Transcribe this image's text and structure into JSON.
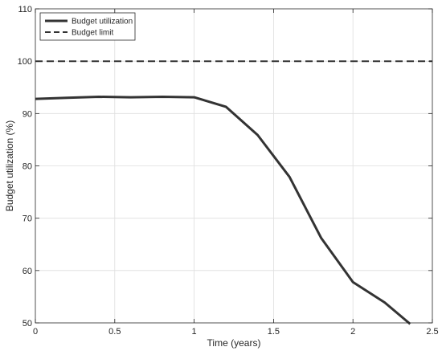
{
  "chart_data": {
    "type": "line",
    "title": "",
    "xlabel": "Time (years)",
    "ylabel": "Budget utilization (%)",
    "xlim": [
      0,
      2.5
    ],
    "ylim": [
      50,
      110
    ],
    "xticks": [
      0,
      0.5,
      1,
      1.5,
      2,
      2.5
    ],
    "xtick_labels": [
      "0",
      "0.5",
      "1",
      "1.5",
      "2",
      "2.5"
    ],
    "yticks": [
      50,
      60,
      70,
      80,
      90,
      100,
      110
    ],
    "ytick_labels": [
      "50",
      "60",
      "70",
      "80",
      "90",
      "100",
      "110"
    ],
    "grid": true,
    "legend_position": "top-left",
    "series": [
      {
        "name": "Budget utilization",
        "style": "solid",
        "color": "#333333",
        "x": [
          0,
          0.2,
          0.4,
          0.6,
          0.8,
          1.0,
          1.2,
          1.4,
          1.6,
          1.8,
          2.0,
          2.2,
          2.36
        ],
        "y": [
          92.8,
          93.0,
          93.2,
          93.1,
          93.2,
          93.1,
          91.3,
          85.9,
          77.9,
          66.2,
          57.8,
          53.9,
          49.8
        ]
      },
      {
        "name": "Budget limit",
        "style": "dashed",
        "color": "#333333",
        "x": [
          0,
          2.5
        ],
        "y": [
          100,
          100
        ]
      }
    ]
  }
}
